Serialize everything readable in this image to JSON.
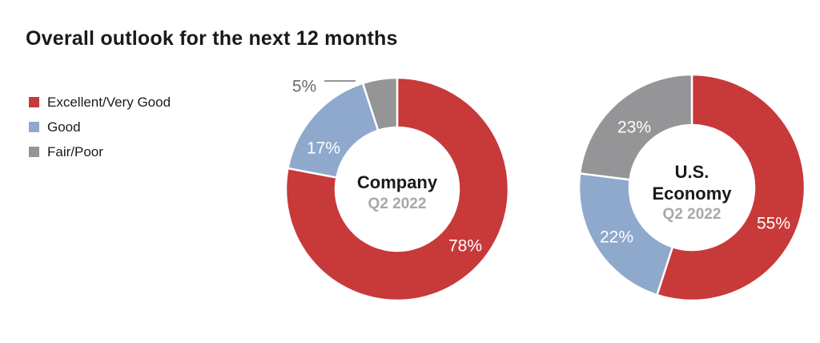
{
  "title": "Overall outlook for the next 12 months",
  "legend": [
    {
      "label": "Excellent/Very Good",
      "color": "#c8393a"
    },
    {
      "label": "Good",
      "color": "#8ea9cc"
    },
    {
      "label": "Fair/Poor",
      "color": "#959597"
    }
  ],
  "chart_data": [
    {
      "type": "pie",
      "donut": true,
      "center_title": [
        "Company"
      ],
      "center_subtitle": "Q2 2022",
      "categories": [
        "Excellent/Very Good",
        "Good",
        "Fair/Poor"
      ],
      "values": [
        78,
        17,
        5
      ],
      "labels": [
        "78%",
        "17%",
        "5%"
      ],
      "colors": [
        "#c8393a",
        "#8ea9cc",
        "#959597"
      ]
    },
    {
      "type": "pie",
      "donut": true,
      "center_title": [
        "U.S.",
        "Economy"
      ],
      "center_subtitle": "Q2 2022",
      "categories": [
        "Excellent/Very Good",
        "Good",
        "Fair/Poor"
      ],
      "values": [
        55,
        22,
        23
      ],
      "labels": [
        "55%",
        "22%",
        "23%"
      ],
      "colors": [
        "#c8393a",
        "#8ea9cc",
        "#959597"
      ]
    }
  ]
}
